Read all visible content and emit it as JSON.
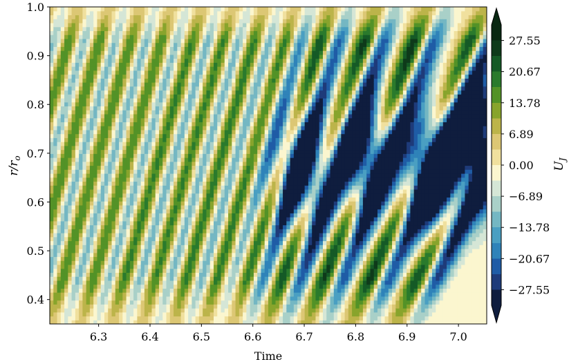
{
  "chart_data": {
    "type": "heatmap",
    "title": "",
    "xlabel": "Time",
    "ylabel": "r/r",
    "ylabel_subscript": "o",
    "xlim": [
      6.205,
      7.055
    ],
    "ylim": [
      0.35,
      1.0
    ],
    "xticks": [
      6.3,
      6.4,
      6.5,
      6.6,
      6.7,
      6.8,
      6.9,
      7.0
    ],
    "xtick_labels": [
      "6.3",
      "6.4",
      "6.5",
      "6.6",
      "6.7",
      "6.8",
      "6.9",
      "7.0"
    ],
    "yticks": [
      0.4,
      0.5,
      0.6,
      0.7,
      0.8,
      0.9,
      1.0
    ],
    "ytick_labels": [
      "0.4",
      "0.5",
      "0.6",
      "0.7",
      "0.8",
      "0.9",
      "1.0"
    ],
    "colorbar": {
      "label": "U",
      "label_subscript": "J",
      "vmin": -31.0,
      "vmax": 31.0,
      "extend": "both",
      "ticks": [
        27.55,
        20.67,
        13.78,
        6.89,
        0.0,
        -6.89,
        -13.78,
        -20.67,
        -27.55
      ],
      "tick_labels": [
        "27.55",
        "20.67",
        "13.78",
        "6.89",
        "0.00",
        "−6.89",
        "−13.78",
        "−20.67",
        "−27.55"
      ],
      "colormap": [
        "#0f1d3e",
        "#1e3b7a",
        "#1f5ca6",
        "#2f83b9",
        "#4a9fc2",
        "#74b7c3",
        "#a9d0c8",
        "#d5e6d6",
        "#fbf6cf",
        "#f0e09e",
        "#dcc774",
        "#bcb44a",
        "#88a42c",
        "#539227",
        "#2a7a2c",
        "#155a26",
        "#0e3a1a",
        "#092812"
      ]
    },
    "field_waves": [
      {
        "t_at_r07": 6.12,
        "slope_dt_dr": 0.27,
        "amplitude": 24
      },
      {
        "t_at_r07": 6.18,
        "slope_dt_dr": 0.27,
        "amplitude": 24
      },
      {
        "t_at_r07": 6.24,
        "slope_dt_dr": 0.27,
        "amplitude": 25
      },
      {
        "t_at_r07": 6.3,
        "slope_dt_dr": 0.27,
        "amplitude": 25
      },
      {
        "t_at_r07": 6.36,
        "slope_dt_dr": 0.27,
        "amplitude": 25
      },
      {
        "t_at_r07": 6.42,
        "slope_dt_dr": 0.27,
        "amplitude": 26
      },
      {
        "t_at_r07": 6.48,
        "slope_dt_dr": 0.27,
        "amplitude": 26
      },
      {
        "t_at_r07": 6.54,
        "slope_dt_dr": 0.27,
        "amplitude": 27
      },
      {
        "t_at_r07": 6.6,
        "slope_dt_dr": 0.27,
        "amplitude": 27
      },
      {
        "t_at_r07": 6.665,
        "slope_dt_dr": 0.3,
        "amplitude": 29
      },
      {
        "t_at_r07": 6.745,
        "slope_dt_dr": 0.33,
        "amplitude": 30
      },
      {
        "t_at_r07": 6.835,
        "slope_dt_dr": 0.36,
        "amplitude": 30
      },
      {
        "t_at_r07": 6.935,
        "slope_dt_dr": 0.4,
        "amplitude": 30
      },
      {
        "t_at_r07": 7.04,
        "slope_dt_dr": 0.45,
        "amplitude": 30
      }
    ],
    "field_negative_blobs": [
      {
        "t": 6.7,
        "r": 0.66,
        "depth": 40
      },
      {
        "t": 6.82,
        "r": 0.69,
        "depth": 45
      },
      {
        "t": 6.95,
        "r": 0.66,
        "depth": 55
      },
      {
        "t": 7.04,
        "r": 0.72,
        "depth": 55
      }
    ]
  }
}
